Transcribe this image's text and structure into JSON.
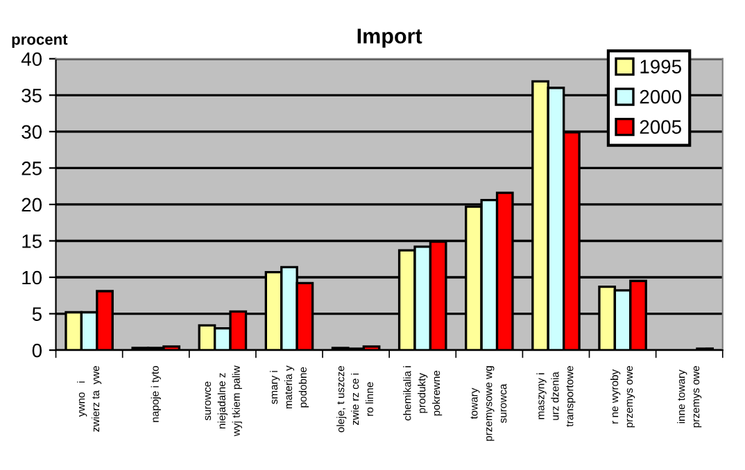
{
  "chart_data": {
    "type": "bar",
    "title": "Import",
    "ylabel": "procent",
    "categories": [
      "ywno   i\nzwierz ta  ywe",
      "napoje i tyto",
      "surowce\nniejadalne z\nwyj tkiem paliw",
      "smary i\nmateria y\npodobne",
      "oleje, t uszcze\nzwie rz ce i\nro linne",
      "chemikalia i\nprodukty\npokrewne",
      "towary\nprzemysowe wg\nsurowca",
      "maszyny i\nurz dzenia\ntransportowe",
      "r ne wyroby\nprzemys owe",
      "inne towary\nprzemys owe"
    ],
    "series": [
      {
        "name": "1995",
        "color": "#ffff99",
        "values": [
          5.2,
          0.3,
          3.4,
          10.7,
          0.3,
          13.7,
          19.7,
          36.9,
          8.7,
          null
        ]
      },
      {
        "name": "2000",
        "color": "#ccffff",
        "values": [
          5.2,
          0.3,
          3.0,
          11.4,
          0.2,
          14.2,
          20.6,
          36.0,
          8.2,
          null
        ]
      },
      {
        "name": "2005",
        "color": "#ff0000",
        "values": [
          8.1,
          0.5,
          5.3,
          9.2,
          0.5,
          14.9,
          21.6,
          29.9,
          9.5,
          0.2
        ]
      }
    ],
    "ylim": [
      0,
      40
    ],
    "yticks": [
      0,
      5,
      10,
      15,
      20,
      25,
      30,
      35,
      40
    ],
    "grid": "y",
    "legend": "top right"
  }
}
